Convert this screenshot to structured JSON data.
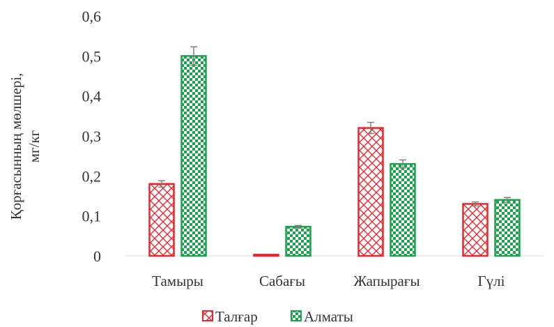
{
  "chart_data": {
    "type": "bar",
    "categories": [
      "Тамыры",
      "Сабағы",
      "Жапырағы",
      "Гүлі"
    ],
    "series": [
      {
        "name": "Талғар",
        "values": [
          0.18,
          0.003,
          0.32,
          0.13
        ],
        "errors": [
          0.008,
          0.001,
          0.014,
          0.005
        ],
        "color": "#e8262d",
        "pattern": "crosshatch"
      },
      {
        "name": "Алматы",
        "values": [
          0.5,
          0.073,
          0.23,
          0.14
        ],
        "errors": [
          0.023,
          0.003,
          0.01,
          0.006
        ],
        "color": "#1aa34a",
        "pattern": "dots"
      }
    ],
    "ylabel_line1": "Қорғасынның мөлшері,",
    "ylabel_line2": "мг/кг",
    "ylim": [
      0,
      0.6
    ],
    "yticks": [
      "0",
      "0,1",
      "0,2",
      "0,3",
      "0,4",
      "0,5",
      "0,6"
    ],
    "grid": false,
    "error_bar_color": "#7f7f7f",
    "legend_position": "bottom"
  }
}
